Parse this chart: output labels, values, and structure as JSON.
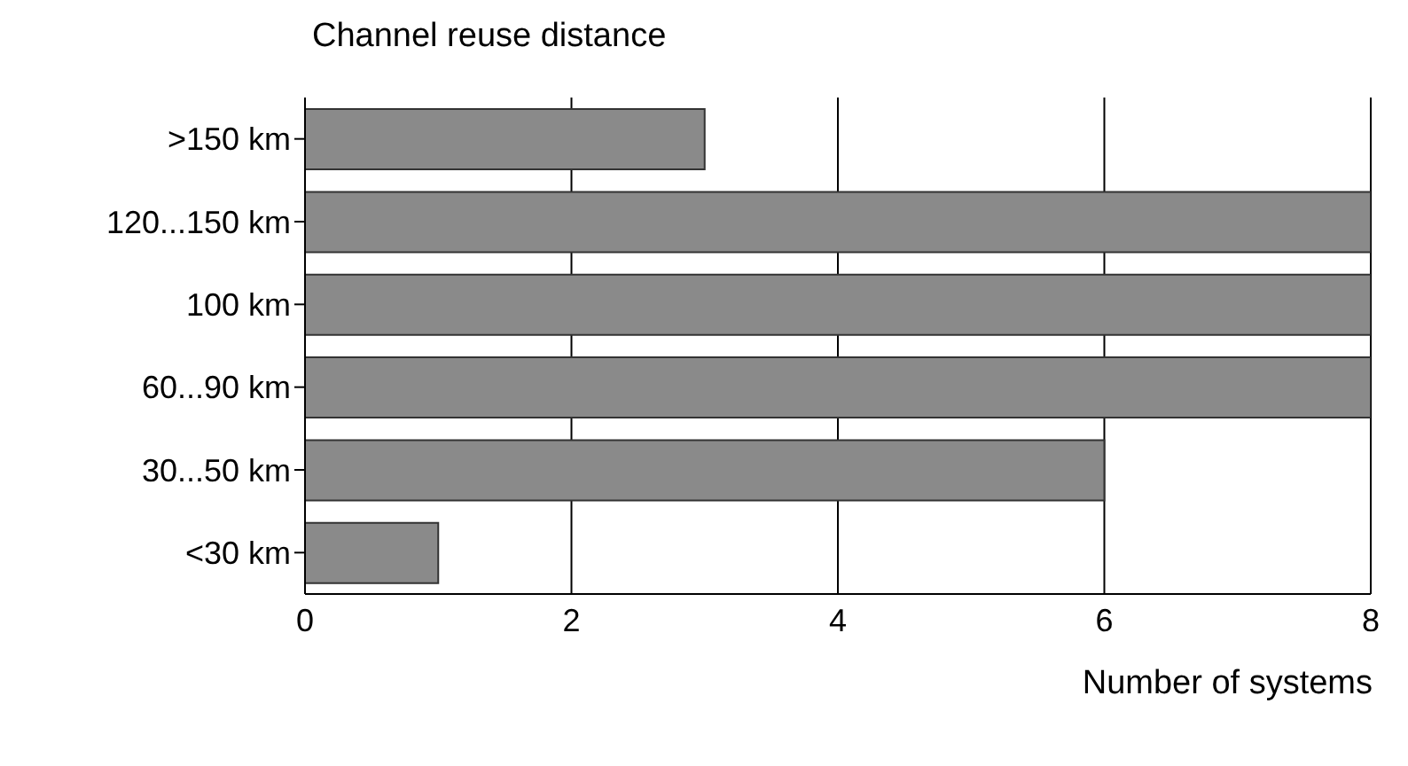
{
  "chart_data": {
    "type": "bar",
    "orientation": "horizontal",
    "ylabel": "Channel reuse distance",
    "xlabel": "Number of systems",
    "categories": [
      ">150 km",
      "120...150 km",
      "100 km",
      "60...90 km",
      "30...50 km",
      "<30 km"
    ],
    "values": [
      3,
      8,
      8,
      8,
      6,
      1
    ],
    "color": "#8a8a8a",
    "xlim": [
      0,
      8
    ],
    "xticks": [
      0,
      2,
      4,
      6,
      8
    ],
    "grid": "x"
  }
}
